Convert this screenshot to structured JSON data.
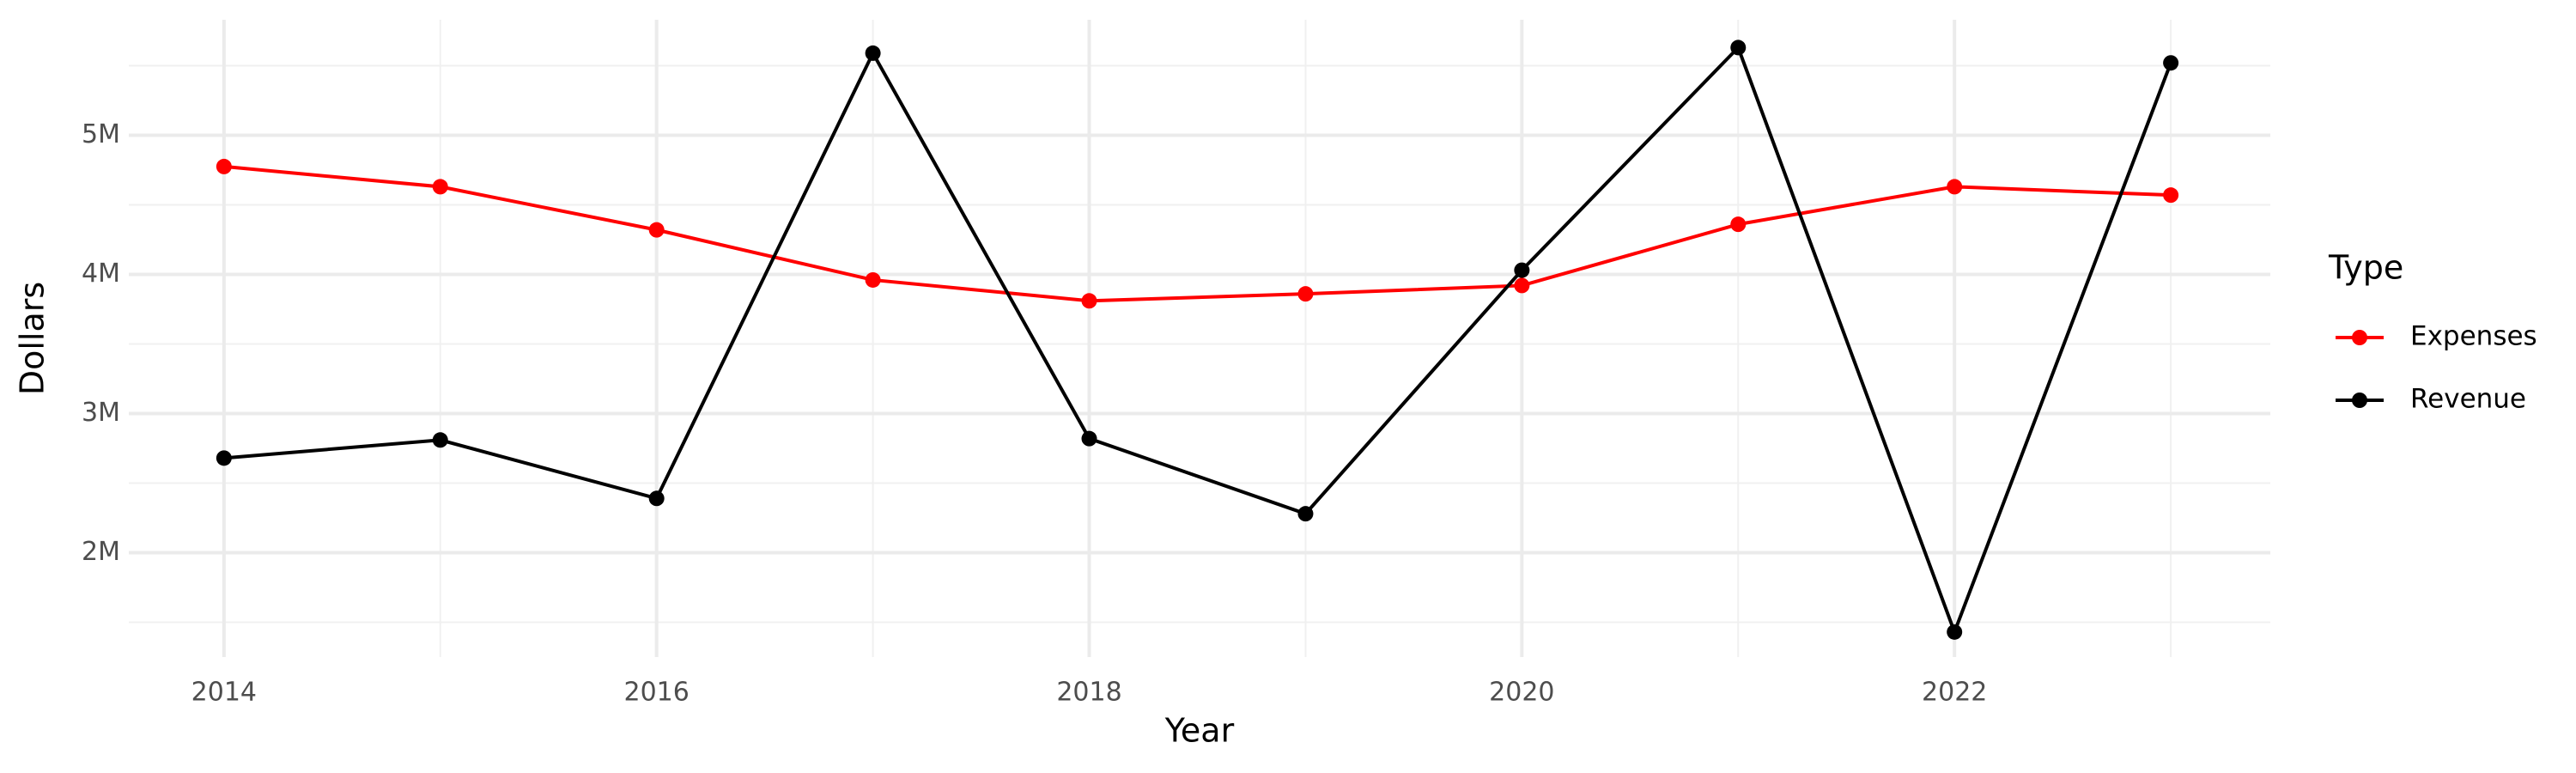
{
  "chart_data": {
    "type": "line",
    "x_label": "Year",
    "y_label": "Dollars",
    "legend_title": "Type",
    "x": [
      2014,
      2015,
      2016,
      2017,
      2018,
      2019,
      2020,
      2021,
      2022,
      2023
    ],
    "series": [
      {
        "name": "Expenses",
        "color": "#ff0000",
        "values": [
          4775000,
          4630000,
          4320000,
          3960000,
          3810000,
          3860000,
          3920000,
          4360000,
          4630000,
          4570000
        ]
      },
      {
        "name": "Revenue",
        "color": "#000000",
        "values": [
          2680000,
          2810000,
          2390000,
          5590000,
          2820000,
          2280000,
          4030000,
          5630000,
          1430000,
          5520000
        ]
      }
    ],
    "xlim": [
      2013.56,
      2023.46
    ],
    "xticks": [
      2014,
      2016,
      2018,
      2020,
      2022
    ],
    "ylim": [
      1250000,
      5830000
    ],
    "yticks": [
      {
        "value": 2000000,
        "label": "2M"
      },
      {
        "value": 3000000,
        "label": "3M"
      },
      {
        "value": 4000000,
        "label": "4M"
      },
      {
        "value": 5000000,
        "label": "5M"
      }
    ],
    "grid": true,
    "legend": "right"
  }
}
